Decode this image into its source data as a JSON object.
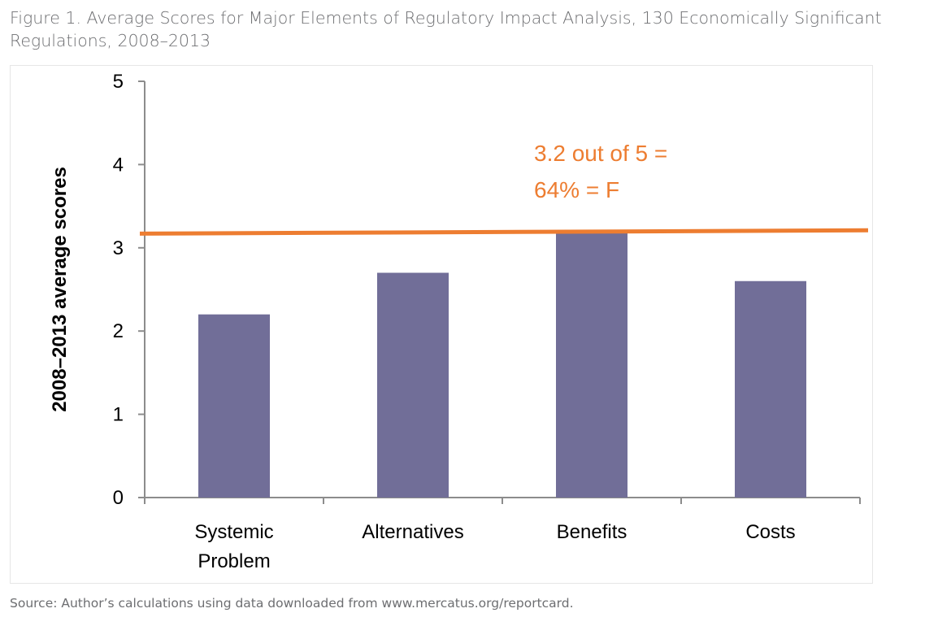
{
  "figure": {
    "title": "Figure 1. Average Scores for Major Elements of Regulatory Impact Analysis, 130 Economically Significant Regulations, 2008–2013",
    "source": "Source: Author’s calculations using data downloaded from www.mercatus.org/reportcard."
  },
  "chart_data": {
    "type": "bar",
    "categories": [
      [
        "Systemic",
        "Problem"
      ],
      [
        "Alternatives"
      ],
      [
        "Benefits"
      ],
      [
        "Costs"
      ]
    ],
    "values": [
      2.2,
      2.7,
      3.2,
      2.6
    ],
    "ylabel": "2008–2013 average scores",
    "ylim": [
      0,
      5
    ],
    "yticks": [
      0,
      1,
      2,
      3,
      4,
      5
    ],
    "grid": false,
    "legend": "none",
    "bar_color": "#716e98",
    "reference_line": {
      "y_start": 3.17,
      "y_end": 3.21,
      "color": "#ed7d31",
      "label_lines": [
        "3.2 out of 5 =",
        "64% = F"
      ]
    }
  }
}
